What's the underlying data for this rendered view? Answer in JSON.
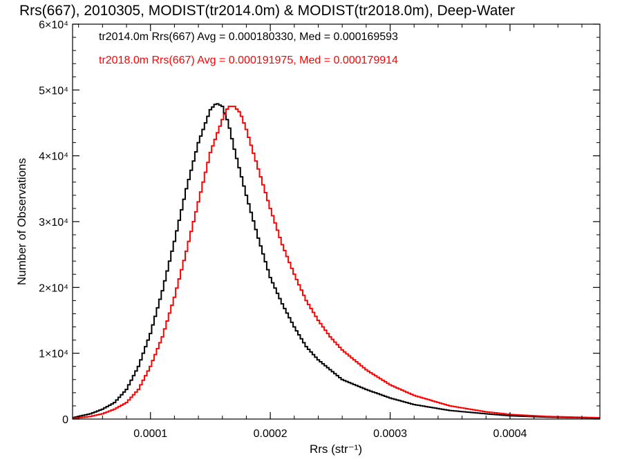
{
  "chart_data": {
    "type": "line",
    "title": "Rrs(667), 2010305, MODIST(tr2014.0m) & MODIST(tr2018.0m), Deep-Water",
    "xlabel": "Rrs (str⁻¹)",
    "ylabel": "Number of Observations",
    "xlim": [
      3.5e-05,
      0.000475
    ],
    "ylim": [
      0,
      60000
    ],
    "x_ticks": [
      0.0001,
      0.0002,
      0.0003,
      0.0004
    ],
    "x_tick_labels": [
      "0.0001",
      "0.0002",
      "0.0003",
      "0.0004"
    ],
    "y_ticks": [
      0,
      10000,
      20000,
      30000,
      40000,
      50000,
      60000
    ],
    "y_tick_labels": [
      "0",
      "1×10⁴",
      "2×10⁴",
      "3×10⁴",
      "4×10⁴",
      "5×10⁴",
      "6×10⁴"
    ],
    "grid": false,
    "legend_position": "top-left",
    "series": [
      {
        "name": "tr2014.0m",
        "color": "#000000",
        "annotation": "tr2014.0m Rrs(667) Avg = 0.000180330, Med = 0.000169593",
        "x": [
          3.5e-05,
          5e-05,
          6e-05,
          7e-05,
          8e-05,
          9e-05,
          0.0001,
          0.00011,
          0.00012,
          0.00013,
          0.00014,
          0.00015,
          0.000155,
          0.00016,
          0.000165,
          0.00017,
          0.00018,
          0.00019,
          0.0002,
          0.00021,
          0.00022,
          0.00023,
          0.00024,
          0.00025,
          0.00026,
          0.00028,
          0.0003,
          0.00032,
          0.00035,
          0.00038,
          0.0004,
          0.00043,
          0.000475
        ],
        "y": [
          200,
          800,
          1500,
          2500,
          4500,
          8000,
          13000,
          19500,
          27000,
          35000,
          42000,
          47000,
          48000,
          47500,
          45000,
          41000,
          34000,
          27500,
          21500,
          17500,
          14000,
          11000,
          9000,
          7500,
          6000,
          4500,
          3200,
          2200,
          1300,
          800,
          500,
          300,
          150
        ]
      },
      {
        "name": "tr2018.0m",
        "color": "#ff0000",
        "annotation": "tr2018.0m Rrs(667) Avg = 0.000191975, Med = 0.000179914",
        "x": [
          3.5e-05,
          5e-05,
          6e-05,
          7e-05,
          8e-05,
          9e-05,
          0.0001,
          0.00011,
          0.00012,
          0.00013,
          0.00014,
          0.00015,
          0.00016,
          0.000165,
          0.00017,
          0.000175,
          0.00018,
          0.00019,
          0.0002,
          0.00021,
          0.00022,
          0.00023,
          0.00024,
          0.00025,
          0.00026,
          0.00028,
          0.0003,
          0.00032,
          0.00035,
          0.00038,
          0.0004,
          0.00043,
          0.000475
        ],
        "y": [
          100,
          400,
          800,
          1500,
          2500,
          4500,
          8000,
          12500,
          18500,
          25500,
          33000,
          40500,
          45500,
          47500,
          47500,
          46500,
          44000,
          38000,
          32000,
          26500,
          22000,
          18000,
          15000,
          12500,
          10500,
          7500,
          5200,
          3600,
          2000,
          1100,
          700,
          400,
          200
        ]
      }
    ]
  }
}
